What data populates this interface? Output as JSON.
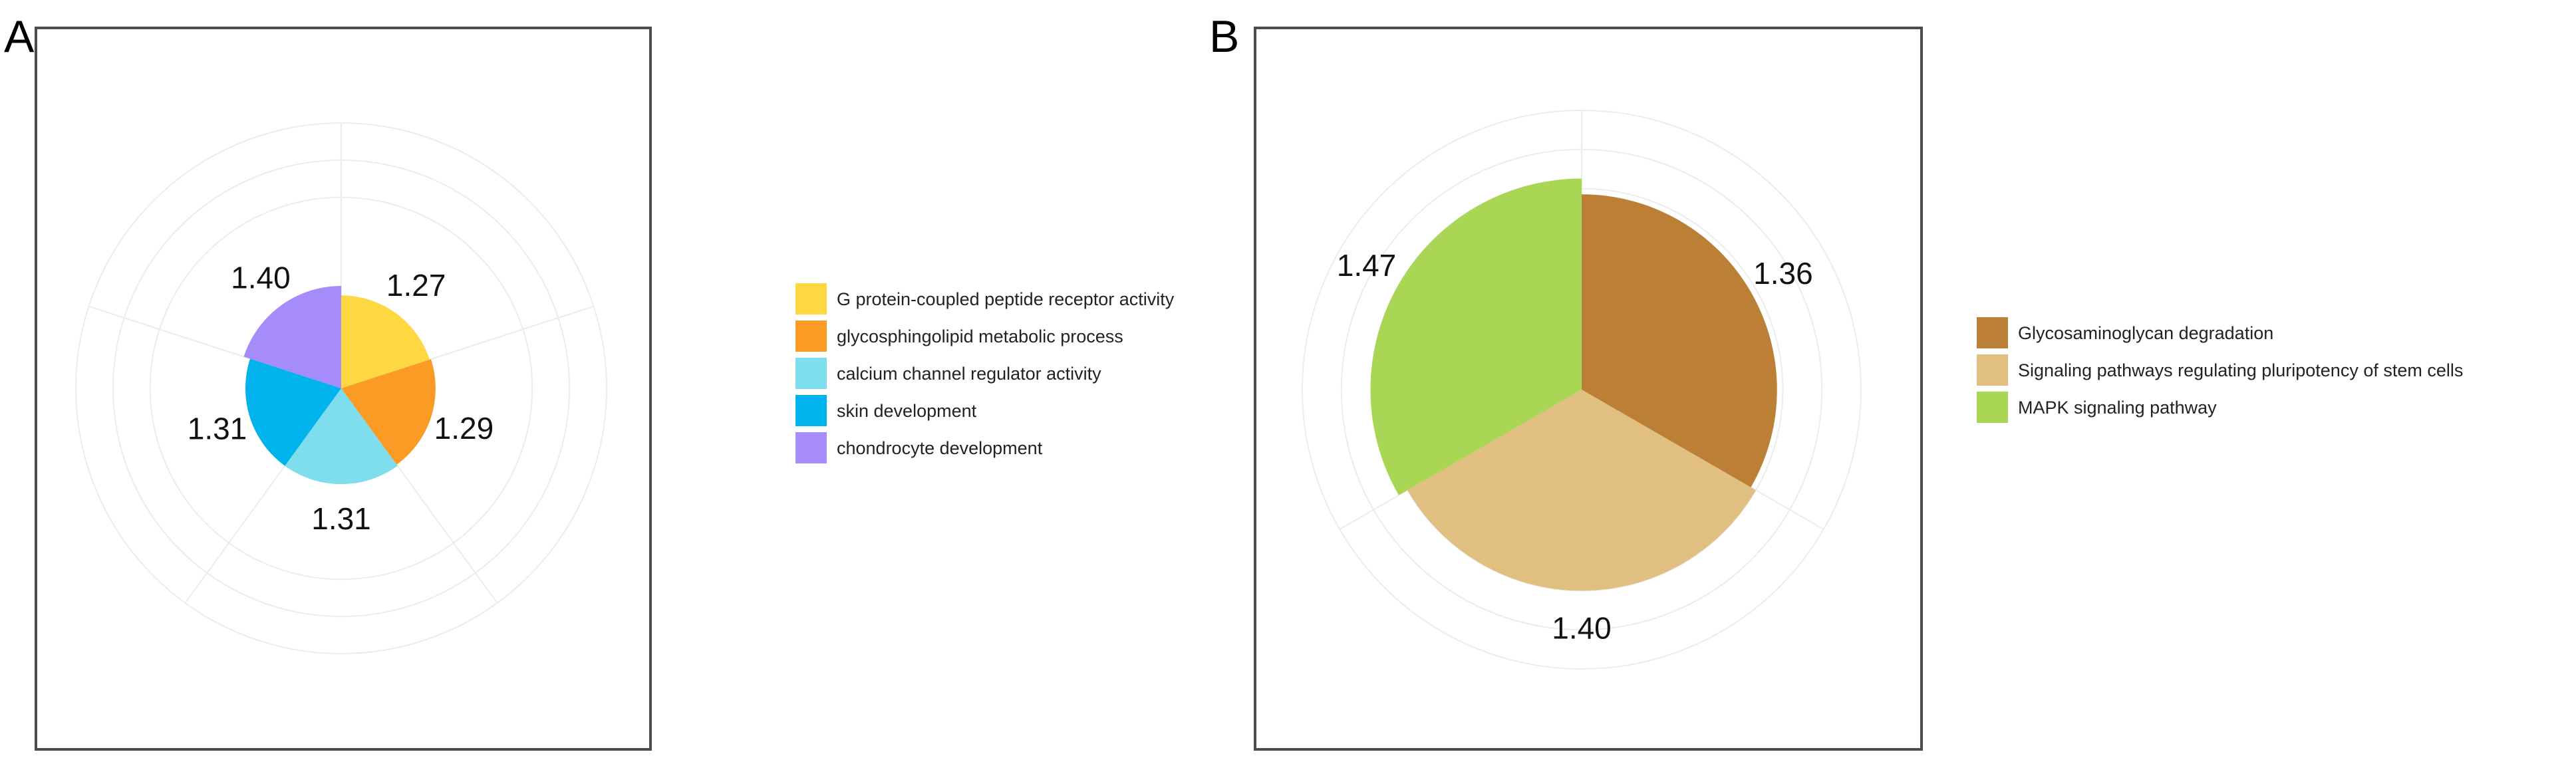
{
  "chart_data": [
    {
      "panel": "A",
      "type": "pie",
      "subtype": "polar-area (rose) chart",
      "legend_position": "right",
      "slices": [
        {
          "label": "G protein-coupled peptide receptor activity",
          "value": 1.27,
          "display": "1.27",
          "color": "#FDD841"
        },
        {
          "label": "glycosphingolipid metabolic process",
          "value": 1.29,
          "display": "1.29",
          "color": "#F99B24"
        },
        {
          "label": "calcium channel regulator activity",
          "value": 1.31,
          "display": "1.31",
          "color": "#7EDEEE"
        },
        {
          "label": "skin development",
          "value": 1.31,
          "display": "1.31",
          "color": "#01B3EC"
        },
        {
          "label": "chondrocyte development",
          "value": 1.4,
          "display": "1.40",
          "color": "#A68BFB"
        }
      ]
    },
    {
      "panel": "B",
      "type": "pie",
      "subtype": "polar-area (rose) chart",
      "legend_position": "right",
      "slices": [
        {
          "label": "Glycosaminoglycan degradation",
          "value": 1.36,
          "display": "1.36",
          "color": "#BB8036"
        },
        {
          "label": "Signaling pathways regulating pluripotency of stem cells",
          "value": 1.4,
          "display": "1.40",
          "color": "#E0BF80"
        },
        {
          "label": "MAPK signaling pathway",
          "value": 1.47,
          "display": "1.47",
          "color": "#A9D654"
        }
      ]
    }
  ]
}
